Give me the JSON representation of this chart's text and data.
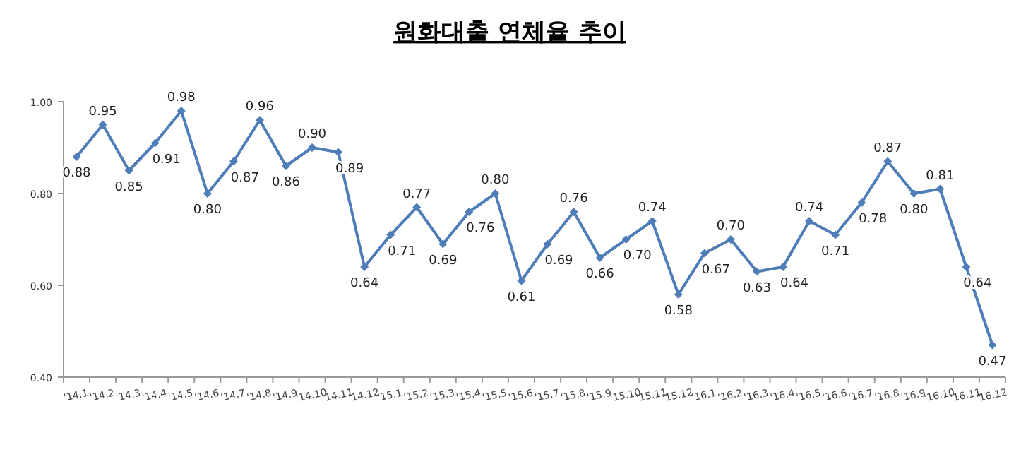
{
  "chart_data": {
    "type": "line",
    "title": "원화대출 연체율 추이",
    "categories": [
      "'14.1",
      "'14.2",
      "'14.3",
      "'14.4",
      "'14.5",
      "'14.6",
      "'14.7",
      "'14.8",
      "'14.9",
      "'14.10",
      "'14.11",
      "'14.12",
      "'15.1",
      "'15.2",
      "'15.3",
      "'15.4",
      "'15.5",
      "'15.6",
      "'15.7",
      "'15.8",
      "'15.9",
      "'15.10",
      "'15.11",
      "'15.12",
      "'16.1",
      "'16.2",
      "'16.3",
      "'16.4",
      "'16.5",
      "'16.6",
      "'16.7",
      "'16.8",
      "'16.9",
      "'16.10",
      "'16.11",
      "'16.12"
    ],
    "values": [
      0.88,
      0.95,
      0.85,
      0.91,
      0.98,
      0.8,
      0.87,
      0.96,
      0.86,
      0.9,
      0.89,
      0.64,
      0.71,
      0.77,
      0.69,
      0.76,
      0.8,
      0.61,
      0.69,
      0.76,
      0.66,
      0.7,
      0.74,
      0.58,
      0.67,
      0.7,
      0.63,
      0.64,
      0.74,
      0.71,
      0.78,
      0.87,
      0.8,
      0.81,
      0.64,
      0.47
    ],
    "color": "#4f7db8",
    "ylim": [
      0.4,
      1.0
    ],
    "yticks": [
      {
        "value": 0.4,
        "label": "0.40"
      },
      {
        "value": 0.6,
        "label": "0.60"
      },
      {
        "value": 0.8,
        "label": "0.80"
      },
      {
        "value": 1.0,
        "label": "1.00"
      }
    ],
    "value_labels": [
      "0.88",
      "0.95",
      "0.85",
      "0.91",
      "0.98",
      "0.80",
      "0.87",
      "0.96",
      "0.86",
      "0.90",
      "0.89",
      "0.64",
      "0.71",
      "0.77",
      "0.69",
      "0.76",
      "0.80",
      "0.61",
      "0.69",
      "0.76",
      "0.66",
      "0.70",
      "0.74",
      "0.58",
      "0.67",
      "0.70",
      "0.63",
      "0.64",
      "0.74",
      "0.71",
      "0.78",
      "0.87",
      "0.80",
      "0.81",
      "0.64",
      "0.47"
    ],
    "marker": "diamond",
    "line_style": "solid",
    "grid": false
  }
}
